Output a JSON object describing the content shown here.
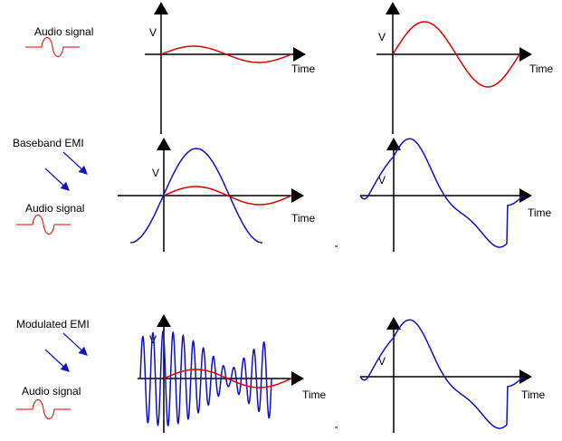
{
  "colors": {
    "audio": "#e00000",
    "emi": "#1010c8",
    "axis": "#000000"
  },
  "rows": [
    {
      "label": "Audio signal",
      "input_label": "",
      "left": {
        "ylabel": "V",
        "xlabel": "Time"
      },
      "right": {
        "ylabel": "V",
        "xlabel": "Time"
      }
    },
    {
      "label": "Audio signal",
      "input_label": "Baseband EMI",
      "left": {
        "ylabel": "V",
        "xlabel": "Time"
      },
      "right": {
        "ylabel": "V",
        "xlabel": "Time"
      }
    },
    {
      "label": "Audio signal",
      "input_label": "Modulated EMI",
      "left": {
        "ylabel": "V",
        "xlabel": "Time"
      },
      "right": {
        "ylabel": "V",
        "xlabel": "Time"
      }
    }
  ]
}
